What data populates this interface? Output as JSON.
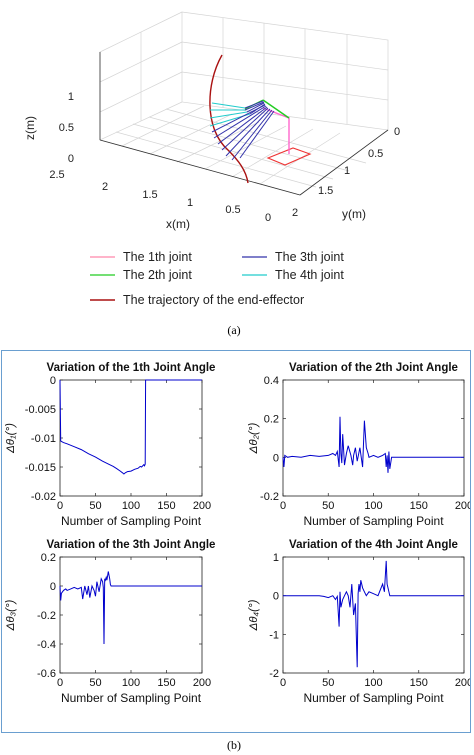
{
  "captions": {
    "a": "(a)",
    "b": "(b)"
  },
  "plot3d": {
    "type": "3d-line",
    "axes": {
      "x": {
        "label": "x(m)",
        "ticks": [
          "0",
          "0.5",
          "1",
          "1.5",
          "2",
          "2.5"
        ]
      },
      "y": {
        "label": "y(m)",
        "ticks": [
          "0",
          "0.5",
          "1",
          "1.5",
          "2"
        ]
      },
      "z": {
        "label": "z(m)",
        "ticks": [
          "0",
          "0.5",
          "1"
        ]
      }
    },
    "legend": {
      "entries": [
        {
          "label": "The 1th joint",
          "color": "#ff88aa"
        },
        {
          "label": "The 2th joint",
          "color": "#22cc22"
        },
        {
          "label": "The 3th joint",
          "color": "#3333aa"
        },
        {
          "label": "The 4th joint",
          "color": "#22cccc"
        },
        {
          "label": "The trajectory of the  end-effector",
          "color": "#aa1111"
        }
      ]
    }
  },
  "chart_data": [
    {
      "type": "line",
      "title": "Variation  of the 1th Joint Angle",
      "xlabel": "Number of Sampling Point",
      "ylabel": "Δθ₁(°)",
      "xlim": [
        0,
        200
      ],
      "ylim": [
        -0.02,
        0
      ],
      "xticks": [
        0,
        50,
        100,
        150,
        200
      ],
      "yticks": [
        0,
        -0.005,
        -0.01,
        -0.015,
        -0.02
      ],
      "ytick_labels": [
        "0",
        "-0.005",
        "-0.01",
        "-0.015",
        "-0.02"
      ],
      "series": [
        {
          "color": "#0000cc",
          "x": [
            0,
            1,
            2,
            5,
            10,
            20,
            30,
            40,
            50,
            60,
            70,
            75,
            80,
            85,
            88,
            90,
            92,
            95,
            100,
            105,
            110,
            113,
            115,
            118,
            119,
            120,
            120.5,
            200
          ],
          "y": [
            0,
            -0.0105,
            -0.0106,
            -0.0108,
            -0.011,
            -0.0115,
            -0.012,
            -0.0127,
            -0.0133,
            -0.014,
            -0.0146,
            -0.0149,
            -0.0153,
            -0.0157,
            -0.016,
            -0.0162,
            -0.016,
            -0.0158,
            -0.0157,
            -0.0154,
            -0.0152,
            -0.0149,
            -0.015,
            -0.0146,
            -0.0148,
            -0.0145,
            0,
            0
          ]
        }
      ]
    },
    {
      "type": "line",
      "title": "Variation  of the 2th Joint Angle",
      "xlabel": "Number of Sampling Point",
      "ylabel": "Δθ₂(°)",
      "xlim": [
        0,
        200
      ],
      "ylim": [
        -0.2,
        0.4
      ],
      "xticks": [
        0,
        50,
        100,
        150,
        200
      ],
      "yticks": [
        0.4,
        0.2,
        0,
        -0.2
      ],
      "ytick_labels": [
        "0.4",
        "0.2",
        "0",
        "-0.2"
      ],
      "series": [
        {
          "color": "#0000cc",
          "x": [
            0,
            1,
            2,
            5,
            10,
            20,
            30,
            40,
            50,
            55,
            58,
            60,
            62,
            63,
            64,
            65,
            66,
            68,
            70,
            72,
            75,
            77,
            78,
            80,
            82,
            85,
            88,
            90,
            92,
            94,
            95,
            100,
            105,
            110,
            113,
            114,
            115,
            116,
            117,
            118,
            120,
            200
          ],
          "y": [
            0,
            -0.05,
            0.01,
            0,
            0.005,
            0,
            0.01,
            0.005,
            0.01,
            0.02,
            0.01,
            0.03,
            -0.05,
            0.21,
            0.02,
            -0.03,
            0.12,
            -0.04,
            0.02,
            0.06,
            0.01,
            -0.04,
            0.01,
            0.05,
            -0.02,
            0.05,
            -0.05,
            0.19,
            0.05,
            0.02,
            0,
            0.01,
            0,
            0.01,
            0.02,
            -0.05,
            0.01,
            -0.08,
            0.03,
            -0.06,
            0,
            0
          ]
        }
      ]
    },
    {
      "type": "line",
      "title": "Variation  of the 3th Joint Angle",
      "xlabel": "Number of Sampling Point",
      "ylabel": "Δθ₃(°)",
      "xlim": [
        0,
        200
      ],
      "ylim": [
        -0.6,
        0.2
      ],
      "xticks": [
        0,
        50,
        100,
        150,
        200
      ],
      "yticks": [
        0.2,
        0,
        -0.2,
        -0.4,
        -0.6
      ],
      "ytick_labels": [
        "0.2",
        "0",
        "-0.2",
        "-0.4",
        "-0.6"
      ],
      "series": [
        {
          "color": "#0000cc",
          "x": [
            0,
            1,
            2,
            5,
            8,
            10,
            15,
            20,
            25,
            30,
            32,
            35,
            38,
            40,
            42,
            45,
            48,
            50,
            52,
            55,
            58,
            60,
            61,
            62,
            63,
            64,
            65,
            66,
            68,
            70,
            71,
            72,
            200
          ],
          "y": [
            0,
            -0.1,
            -0.05,
            -0.03,
            -0.02,
            -0.03,
            -0.02,
            -0.01,
            -0.02,
            -0.01,
            -0.09,
            0,
            -0.06,
            0,
            -0.08,
            0,
            -0.03,
            -0.07,
            0.03,
            -0.04,
            0.05,
            0.03,
            -0.01,
            -0.4,
            0.05,
            0.04,
            0.06,
            0.04,
            0.1,
            0.05,
            0.01,
            0,
            0
          ]
        }
      ]
    },
    {
      "type": "line",
      "title": "Variation  of the 4th Joint Angle",
      "xlabel": "Number of Sampling Point",
      "ylabel": "Δθ₄(°)",
      "xlim": [
        0,
        200
      ],
      "ylim": [
        -2,
        1
      ],
      "xticks": [
        0,
        50,
        100,
        150,
        200
      ],
      "yticks": [
        1,
        0,
        -1,
        -2
      ],
      "ytick_labels": [
        "1",
        "0",
        "-1",
        "-2"
      ],
      "series": [
        {
          "color": "#0000cc",
          "x": [
            0,
            10,
            20,
            30,
            40,
            45,
            50,
            55,
            58,
            60,
            62,
            63,
            64,
            66,
            68,
            70,
            72,
            74,
            76,
            78,
            80,
            82,
            83,
            84,
            85,
            86,
            88,
            90,
            92,
            95,
            100,
            105,
            110,
            112,
            114,
            115,
            116,
            117,
            118,
            120,
            200
          ],
          "y": [
            0,
            0,
            0,
            0,
            0,
            -0.02,
            -0.05,
            0,
            -0.1,
            -0.02,
            -0.8,
            0.1,
            -0.3,
            -0.1,
            0,
            0.1,
            0,
            -0.3,
            0.3,
            -0.5,
            -0.2,
            -1.85,
            0.05,
            0.3,
            0.1,
            0.4,
            0.2,
            0.1,
            0,
            0.1,
            0.05,
            0,
            0.3,
            0.1,
            0.9,
            0.3,
            0.2,
            0.1,
            0,
            0,
            0
          ]
        }
      ]
    }
  ]
}
